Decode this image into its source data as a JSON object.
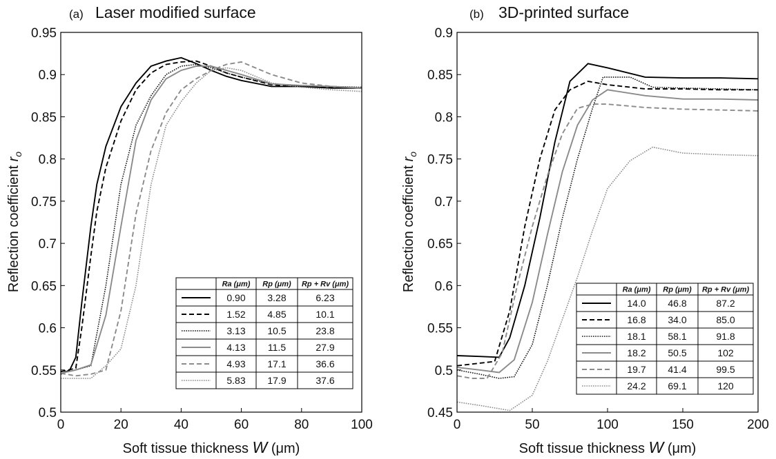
{
  "chart_data": [
    {
      "type": "line",
      "panel_tag": "(a)",
      "title": "Laser modified surface",
      "xlabel": "Soft tissue thickness",
      "xlabel_symbol": "W",
      "xlabel_unit": "(μm)",
      "ylabel": "Reflection coefficient",
      "ylabel_symbol": "r",
      "ylabel_sub": "o",
      "xlim": [
        0,
        100
      ],
      "ylim": [
        0.5,
        0.95
      ],
      "xticks": [
        0,
        20,
        40,
        60,
        80,
        100
      ],
      "yticks": [
        0.5,
        0.55,
        0.6,
        0.65,
        0.7,
        0.75,
        0.8,
        0.85,
        0.9,
        0.95
      ],
      "ytick_labels": [
        "0.5",
        "0.55",
        "0.6",
        "0.65",
        "0.7",
        "0.75",
        "0.8",
        "0.85",
        "0.9",
        "0.95"
      ],
      "legend_position": "lower-right",
      "legend_headers": [
        "Ra (μm)",
        "Rp (μm)",
        "Rp + Rv (μm)"
      ],
      "series": [
        {
          "ra": "0.90",
          "rp": "3.28",
          "rpv": "6.23",
          "color": "#000000",
          "style": "solid",
          "x": [
            0,
            3,
            5,
            7,
            10,
            12,
            15,
            20,
            25,
            30,
            35,
            40,
            45,
            50,
            55,
            60,
            70,
            80,
            90,
            100
          ],
          "y": [
            0.545,
            0.55,
            0.565,
            0.63,
            0.72,
            0.77,
            0.815,
            0.862,
            0.89,
            0.91,
            0.916,
            0.92,
            0.913,
            0.905,
            0.898,
            0.893,
            0.886,
            0.886,
            0.884,
            0.884
          ]
        },
        {
          "ra": "1.52",
          "rp": "4.85",
          "rpv": "10.1",
          "color": "#000000",
          "style": "dashed",
          "x": [
            0,
            5,
            7,
            10,
            12,
            15,
            20,
            25,
            30,
            35,
            40,
            45,
            50,
            55,
            60,
            70,
            80,
            90,
            100
          ],
          "y": [
            0.548,
            0.552,
            0.6,
            0.685,
            0.738,
            0.79,
            0.845,
            0.882,
            0.902,
            0.912,
            0.915,
            0.916,
            0.91,
            0.902,
            0.897,
            0.888,
            0.886,
            0.885,
            0.884
          ]
        },
        {
          "ra": "3.13",
          "rp": "10.5",
          "rpv": "23.8",
          "color": "#111111",
          "style": "dotted",
          "x": [
            0,
            5,
            10,
            15,
            20,
            25,
            30,
            35,
            40,
            45,
            50,
            55,
            60,
            70,
            80,
            90,
            100
          ],
          "y": [
            0.546,
            0.55,
            0.555,
            0.65,
            0.77,
            0.84,
            0.875,
            0.9,
            0.91,
            0.912,
            0.908,
            0.902,
            0.897,
            0.889,
            0.887,
            0.886,
            0.885
          ]
        },
        {
          "ra": "4.13",
          "rp": "11.5",
          "rpv": "27.9",
          "color": "#8a8a8a",
          "style": "solid",
          "x": [
            0,
            5,
            10,
            15,
            20,
            25,
            30,
            35,
            40,
            45,
            50,
            55,
            60,
            70,
            80,
            90,
            100
          ],
          "y": [
            0.546,
            0.55,
            0.556,
            0.615,
            0.72,
            0.822,
            0.87,
            0.895,
            0.905,
            0.91,
            0.91,
            0.905,
            0.9,
            0.889,
            0.887,
            0.886,
            0.884
          ]
        },
        {
          "ra": "4.93",
          "rp": "17.1",
          "rpv": "36.6",
          "color": "#8a8a8a",
          "style": "dashed",
          "x": [
            0,
            5,
            10,
            15,
            20,
            25,
            30,
            35,
            40,
            45,
            50,
            55,
            60,
            70,
            80,
            90,
            100
          ],
          "y": [
            0.546,
            0.543,
            0.545,
            0.55,
            0.62,
            0.735,
            0.81,
            0.855,
            0.882,
            0.895,
            0.905,
            0.912,
            0.915,
            0.9,
            0.89,
            0.886,
            0.884
          ]
        },
        {
          "ra": "5.83",
          "rp": "17.9",
          "rpv": "37.6",
          "color": "#8a8a8a",
          "style": "dotted",
          "x": [
            0,
            5,
            10,
            15,
            20,
            25,
            30,
            35,
            40,
            45,
            50,
            55,
            60,
            70,
            80,
            90,
            100
          ],
          "y": [
            0.54,
            0.54,
            0.54,
            0.555,
            0.575,
            0.65,
            0.77,
            0.84,
            0.868,
            0.89,
            0.905,
            0.908,
            0.905,
            0.89,
            0.885,
            0.882,
            0.88
          ]
        }
      ]
    },
    {
      "type": "line",
      "panel_tag": "(b)",
      "title": "3D-printed surface",
      "xlabel": "Soft tissue thickness",
      "xlabel_symbol": "W",
      "xlabel_unit": "(μm)",
      "ylabel": "Reflection coefficient",
      "ylabel_symbol": "r",
      "ylabel_sub": "o",
      "xlim": [
        0,
        200
      ],
      "ylim": [
        0.45,
        0.9
      ],
      "xticks": [
        0,
        50,
        100,
        150,
        200
      ],
      "yticks": [
        0.45,
        0.5,
        0.55,
        0.6,
        0.65,
        0.7,
        0.75,
        0.8,
        0.85,
        0.9
      ],
      "ytick_labels": [
        "0.45",
        "0.5",
        "0.55",
        "0.6",
        "0.65",
        "0.7",
        "0.75",
        "0.8",
        "0.85",
        "0.9"
      ],
      "legend_position": "lower-right",
      "legend_headers": [
        "Ra (μm)",
        "Rp (μm)",
        "Rp + Rv (μm)"
      ],
      "series": [
        {
          "ra": "14.0",
          "rp": "46.8",
          "rpv": "87.2",
          "color": "#000000",
          "style": "solid",
          "x": [
            0,
            15,
            28,
            35,
            45,
            55,
            65,
            75,
            87,
            100,
            125,
            150,
            175,
            200
          ],
          "y": [
            0.517,
            0.516,
            0.515,
            0.538,
            0.6,
            0.68,
            0.77,
            0.842,
            0.863,
            0.858,
            0.847,
            0.846,
            0.846,
            0.845
          ]
        },
        {
          "ra": "16.8",
          "rp": "34.0",
          "rpv": "85.0",
          "color": "#000000",
          "style": "dashed",
          "x": [
            0,
            15,
            25,
            35,
            45,
            55,
            65,
            75,
            87,
            100,
            125,
            150,
            175,
            200
          ],
          "y": [
            0.505,
            0.508,
            0.51,
            0.57,
            0.67,
            0.75,
            0.808,
            0.832,
            0.842,
            0.838,
            0.833,
            0.833,
            0.832,
            0.832
          ]
        },
        {
          "ra": "18.1",
          "rp": "58.1",
          "rpv": "91.8",
          "color": "#111111",
          "style": "dotted",
          "x": [
            0,
            15,
            28,
            38,
            50,
            60,
            70,
            80,
            90,
            97,
            115,
            130,
            150,
            175,
            200
          ],
          "y": [
            0.5,
            0.495,
            0.49,
            0.492,
            0.53,
            0.6,
            0.68,
            0.75,
            0.81,
            0.847,
            0.847,
            0.835,
            0.834,
            0.833,
            0.832
          ]
        },
        {
          "ra": "18.2",
          "rp": "50.5",
          "rpv": "102",
          "color": "#8a8a8a",
          "style": "solid",
          "x": [
            0,
            15,
            28,
            38,
            50,
            60,
            70,
            80,
            90,
            100,
            125,
            150,
            175,
            200
          ],
          "y": [
            0.503,
            0.5,
            0.497,
            0.512,
            0.58,
            0.66,
            0.735,
            0.79,
            0.82,
            0.832,
            0.825,
            0.821,
            0.821,
            0.82
          ]
        },
        {
          "ra": "19.7",
          "rp": "41.4",
          "rpv": "99.5",
          "color": "#8a8a8a",
          "style": "dashed",
          "x": [
            0,
            10,
            20,
            30,
            40,
            50,
            60,
            70,
            80,
            90,
            100,
            125,
            150,
            175,
            200
          ],
          "y": [
            0.493,
            0.49,
            0.49,
            0.52,
            0.6,
            0.67,
            0.73,
            0.78,
            0.81,
            0.815,
            0.815,
            0.811,
            0.809,
            0.808,
            0.807
          ]
        },
        {
          "ra": "24.2",
          "rp": "69.1",
          "rpv": "120",
          "color": "#8a8a8a",
          "style": "dotted",
          "x": [
            0,
            15,
            25,
            35,
            50,
            60,
            70,
            80,
            90,
            100,
            115,
            130,
            150,
            175,
            200
          ],
          "y": [
            0.462,
            0.458,
            0.455,
            0.452,
            0.47,
            0.51,
            0.56,
            0.61,
            0.665,
            0.715,
            0.748,
            0.764,
            0.757,
            0.755,
            0.754
          ]
        }
      ]
    }
  ]
}
